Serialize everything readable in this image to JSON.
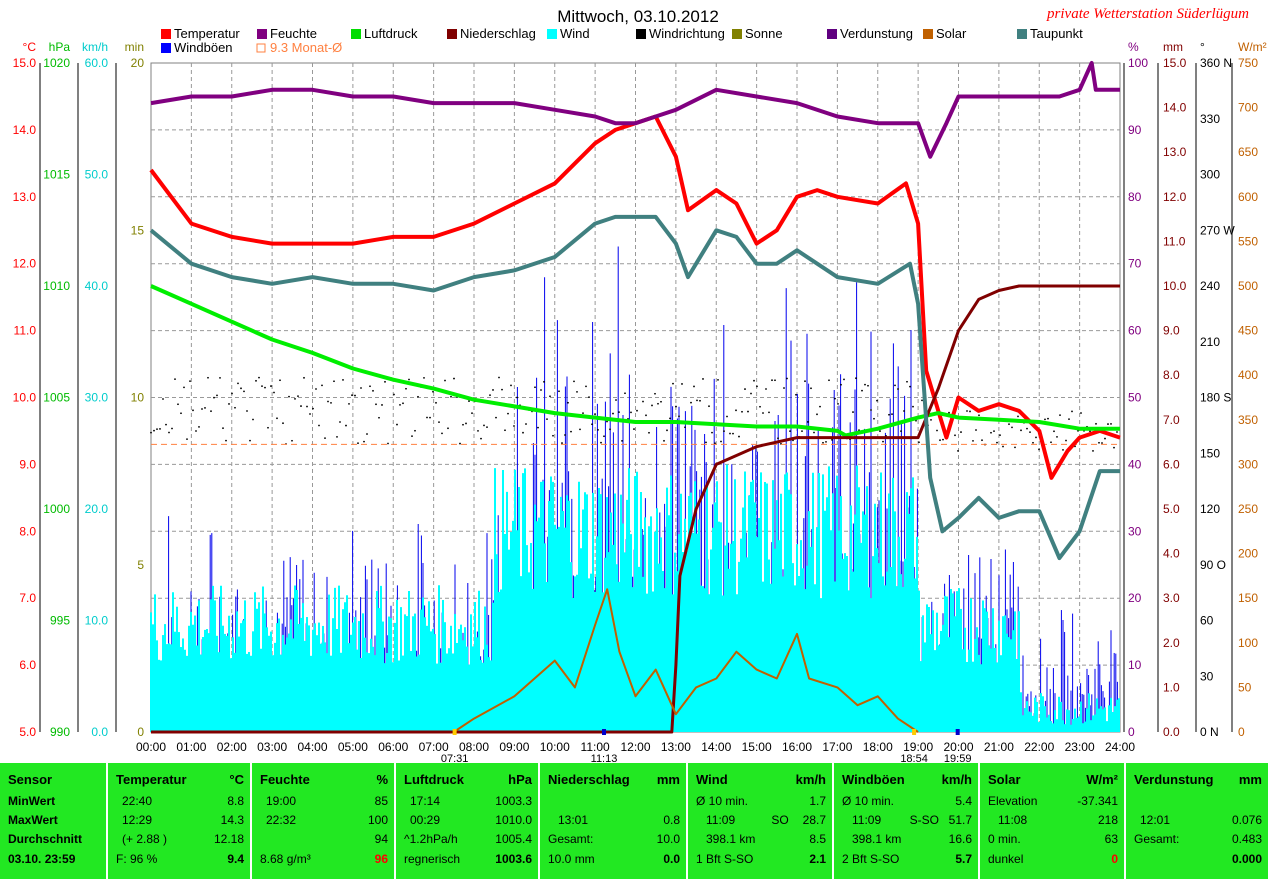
{
  "title": "Mittwoch, 03.10.2012",
  "brand": "private Wetterstation Süderlügum",
  "legend": [
    {
      "label": "Temperatur",
      "color": "#ff0000"
    },
    {
      "label": "Feuchte",
      "color": "#800080"
    },
    {
      "label": "Luftdruck",
      "color": "#00dd00"
    },
    {
      "label": "Niederschlag",
      "color": "#800000"
    },
    {
      "label": "Wind",
      "color": "#00ffff"
    },
    {
      "label": "Windrichtung",
      "color": "#000000"
    },
    {
      "label": "Sonne",
      "color": "#808000"
    },
    {
      "label": "Verdunstung",
      "color": "#600080"
    },
    {
      "label": "Solar",
      "color": "#c06000"
    },
    {
      "label": "Taupunkt",
      "color": "#408080"
    },
    {
      "label": "Windböen",
      "color": "#0000ff"
    },
    {
      "label": "9.3 Monat-Ø",
      "color": "#ff8040"
    }
  ],
  "chart_data": {
    "type": "line",
    "x_ticks": [
      "00:00",
      "01:00",
      "02:00",
      "03:00",
      "04:00",
      "05:00",
      "06:00",
      "07:00",
      "08:00",
      "09:00",
      "10:00",
      "11:00",
      "12:00",
      "13:00",
      "14:00",
      "15:00",
      "16:00",
      "17:00",
      "18:00",
      "19:00",
      "20:00",
      "21:00",
      "22:00",
      "23:00",
      "24:00"
    ],
    "x_markers": [
      "07:31",
      "11:13",
      "18:54",
      "19:59"
    ],
    "axes": {
      "temperature": {
        "unit": "°C",
        "range": [
          5.0,
          15.0
        ],
        "ticks": [
          "15.0",
          "14.0",
          "13.0",
          "12.0",
          "11.0",
          "10.0",
          "9.0",
          "8.0",
          "7.0",
          "6.0",
          "5.0"
        ]
      },
      "pressure": {
        "unit": "hPa",
        "range": [
          990,
          1020
        ],
        "ticks": [
          "1020",
          "1015",
          "1010",
          "1005",
          "1000",
          "995",
          "990"
        ]
      },
      "wind": {
        "unit": "km/h",
        "range": [
          0,
          60
        ],
        "ticks": [
          "60.0",
          "50.0",
          "40.0",
          "30.0",
          "20.0",
          "10.0",
          "0.0"
        ]
      },
      "sun": {
        "unit": "min",
        "range": [
          0,
          20
        ],
        "ticks": [
          "20",
          "15",
          "10",
          "5",
          "0"
        ]
      },
      "humidity": {
        "unit": "%",
        "range": [
          0,
          100
        ],
        "ticks": [
          "100",
          "90",
          "80",
          "70",
          "60",
          "50",
          "40",
          "30",
          "20",
          "10",
          "0"
        ]
      },
      "precip": {
        "unit": "mm",
        "range": [
          0,
          15
        ],
        "ticks": [
          "15.0",
          "14.0",
          "13.0",
          "12.0",
          "11.0",
          "10.0",
          "9.0",
          "8.0",
          "7.0",
          "6.0",
          "5.0",
          "4.0",
          "3.0",
          "2.0",
          "1.0",
          "0.0"
        ]
      },
      "direction": {
        "unit": "°",
        "ticks": [
          "360 N",
          "330",
          "300",
          "270 W",
          "240",
          "210",
          "180 S",
          "150",
          "120",
          "90 O",
          "60",
          "30",
          "0 N"
        ]
      },
      "solar": {
        "unit": "W/m²",
        "range": [
          0,
          750
        ],
        "ticks": [
          "750",
          "700",
          "650",
          "600",
          "550",
          "500",
          "450",
          "400",
          "350",
          "300",
          "250",
          "200",
          "150",
          "100",
          "50",
          "0"
        ]
      }
    },
    "series": [
      {
        "name": "Temperatur",
        "axis": "temperature",
        "points": [
          [
            0,
            13.4
          ],
          [
            0.5,
            13.0
          ],
          [
            1,
            12.6
          ],
          [
            2,
            12.4
          ],
          [
            3,
            12.3
          ],
          [
            4,
            12.3
          ],
          [
            5,
            12.3
          ],
          [
            6,
            12.4
          ],
          [
            7,
            12.4
          ],
          [
            8,
            12.6
          ],
          [
            9,
            12.9
          ],
          [
            10,
            13.2
          ],
          [
            11,
            13.8
          ],
          [
            11.5,
            14.0
          ],
          [
            12,
            14.1
          ],
          [
            12.5,
            14.2
          ],
          [
            13,
            13.6
          ],
          [
            13.3,
            12.8
          ],
          [
            14,
            13.1
          ],
          [
            14.5,
            12.9
          ],
          [
            15,
            12.3
          ],
          [
            15.5,
            12.5
          ],
          [
            16,
            13.0
          ],
          [
            16.5,
            13.1
          ],
          [
            17,
            13.0
          ],
          [
            18,
            12.9
          ],
          [
            18.7,
            13.2
          ],
          [
            19,
            12.6
          ],
          [
            19.2,
            10.4
          ],
          [
            19.5,
            9.8
          ],
          [
            19.7,
            9.4
          ],
          [
            20,
            10.0
          ],
          [
            20.5,
            9.8
          ],
          [
            21,
            9.9
          ],
          [
            21.5,
            9.8
          ],
          [
            22,
            9.5
          ],
          [
            22.3,
            8.8
          ],
          [
            22.7,
            9.2
          ],
          [
            23,
            9.4
          ],
          [
            23.5,
            9.5
          ],
          [
            24,
            9.4
          ]
        ]
      },
      {
        "name": "Feuchte",
        "axis": "humidity",
        "points": [
          [
            0,
            94
          ],
          [
            1,
            95
          ],
          [
            2,
            95
          ],
          [
            3,
            96
          ],
          [
            4,
            96
          ],
          [
            5,
            95
          ],
          [
            6,
            95
          ],
          [
            7,
            94
          ],
          [
            8,
            94
          ],
          [
            9,
            94
          ],
          [
            10,
            93
          ],
          [
            11,
            92
          ],
          [
            11.5,
            91
          ],
          [
            12,
            91
          ],
          [
            12.5,
            92
          ],
          [
            13,
            93
          ],
          [
            14,
            96
          ],
          [
            15,
            95
          ],
          [
            16,
            94
          ],
          [
            17,
            92
          ],
          [
            18,
            91
          ],
          [
            19,
            91
          ],
          [
            19.3,
            86
          ],
          [
            19.7,
            91
          ],
          [
            20,
            95
          ],
          [
            21,
            95
          ],
          [
            22,
            95
          ],
          [
            22.5,
            95
          ],
          [
            23,
            96
          ],
          [
            23.3,
            100
          ],
          [
            23.4,
            96
          ],
          [
            24,
            96
          ]
        ]
      },
      {
        "name": "Luftdruck",
        "axis": "pressure",
        "points": [
          [
            0,
            1010.0
          ],
          [
            1,
            1009.2
          ],
          [
            2,
            1008.4
          ],
          [
            3,
            1007.6
          ],
          [
            4,
            1007.0
          ],
          [
            5,
            1006.3
          ],
          [
            6,
            1005.8
          ],
          [
            7,
            1005.4
          ],
          [
            8,
            1004.9
          ],
          [
            9,
            1004.6
          ],
          [
            10,
            1004.3
          ],
          [
            11,
            1004.1
          ],
          [
            12,
            1003.9
          ],
          [
            13,
            1003.9
          ],
          [
            14,
            1003.8
          ],
          [
            15,
            1003.7
          ],
          [
            16,
            1003.7
          ],
          [
            17,
            1003.5
          ],
          [
            17.2,
            1003.3
          ],
          [
            18,
            1003.6
          ],
          [
            19,
            1004.1
          ],
          [
            19.5,
            1004.3
          ],
          [
            20,
            1004.1
          ],
          [
            21,
            1004.0
          ],
          [
            22,
            1003.9
          ],
          [
            23,
            1003.6
          ],
          [
            24,
            1003.6
          ]
        ]
      },
      {
        "name": "Niederschlag",
        "axis": "precip",
        "points": [
          [
            0,
            0
          ],
          [
            12.9,
            0
          ],
          [
            13.0,
            1.5
          ],
          [
            13.1,
            3.5
          ],
          [
            13.5,
            5.0
          ],
          [
            14,
            6.0
          ],
          [
            15,
            6.4
          ],
          [
            16,
            6.6
          ],
          [
            17,
            6.6
          ],
          [
            18,
            6.6
          ],
          [
            19,
            6.6
          ],
          [
            19.5,
            7.7
          ],
          [
            20,
            9.0
          ],
          [
            20.5,
            9.7
          ],
          [
            21,
            9.9
          ],
          [
            21.5,
            10.0
          ],
          [
            24,
            10.0
          ]
        ]
      },
      {
        "name": "Taupunkt",
        "axis": "temperature",
        "points": [
          [
            0,
            12.5
          ],
          [
            1,
            12.0
          ],
          [
            2,
            11.8
          ],
          [
            3,
            11.7
          ],
          [
            4,
            11.8
          ],
          [
            5,
            11.7
          ],
          [
            6,
            11.7
          ],
          [
            7,
            11.6
          ],
          [
            8,
            11.8
          ],
          [
            9,
            11.9
          ],
          [
            10,
            12.1
          ],
          [
            11,
            12.6
          ],
          [
            11.5,
            12.7
          ],
          [
            12,
            12.7
          ],
          [
            12.5,
            12.7
          ],
          [
            13,
            12.3
          ],
          [
            13.3,
            11.8
          ],
          [
            14,
            12.5
          ],
          [
            14.5,
            12.4
          ],
          [
            15,
            12.0
          ],
          [
            15.5,
            12.0
          ],
          [
            16,
            12.2
          ],
          [
            16.5,
            12.0
          ],
          [
            17,
            11.8
          ],
          [
            18,
            11.7
          ],
          [
            18.8,
            12.0
          ],
          [
            19,
            11.4
          ],
          [
            19.3,
            8.8
          ],
          [
            19.6,
            8.0
          ],
          [
            20,
            8.2
          ],
          [
            20.5,
            8.5
          ],
          [
            21,
            8.2
          ],
          [
            21.5,
            8.3
          ],
          [
            22,
            8.3
          ],
          [
            22.5,
            7.6
          ],
          [
            23,
            8.0
          ],
          [
            23.5,
            8.9
          ],
          [
            24,
            8.9
          ]
        ]
      },
      {
        "name": "Solar",
        "axis": "solar",
        "points": [
          [
            7.5,
            0
          ],
          [
            8,
            15
          ],
          [
            9,
            40
          ],
          [
            10,
            80
          ],
          [
            10.5,
            50
          ],
          [
            11,
            120
          ],
          [
            11.3,
            160
          ],
          [
            11.6,
            90
          ],
          [
            12,
            40
          ],
          [
            12.5,
            70
          ],
          [
            13,
            20
          ],
          [
            13.5,
            50
          ],
          [
            14,
            60
          ],
          [
            14.5,
            90
          ],
          [
            15,
            70
          ],
          [
            15.5,
            60
          ],
          [
            16,
            110
          ],
          [
            16.3,
            60
          ],
          [
            17,
            50
          ],
          [
            17.5,
            30
          ],
          [
            18,
            40
          ],
          [
            18.5,
            15
          ],
          [
            19,
            0
          ]
        ]
      }
    ],
    "reference_line": {
      "name": "9.3 Monat-Ø",
      "axis": "temperature",
      "value": 9.3
    }
  },
  "stats": {
    "sensor": {
      "header": "Sensor",
      "rows": [
        "MinWert",
        "MaxWert",
        "Durchschnitt"
      ],
      "footer": "03.10. 23:59"
    },
    "temperatur": {
      "header": "Temperatur",
      "unit": "°C",
      "min_time": "22:40",
      "min_val": "8.8",
      "max_time": "12:29",
      "max_val": "14.3",
      "avg_note": "(+ 2.88 )",
      "avg_val": "12.18",
      "foot_left": "F: 96 %",
      "foot_val": "9.4"
    },
    "feuchte": {
      "header": "Feuchte",
      "unit": "%",
      "min_time": "19:00",
      "min_val": "85",
      "max_time": "22:32",
      "max_val": "100",
      "avg_val": "94",
      "foot_left": "8.68 g/m³",
      "foot_val": "96"
    },
    "luftdruck": {
      "header": "Luftdruck",
      "unit": "hPa",
      "min_time": "17:14",
      "min_val": "1003.3",
      "max_time": "00:29",
      "max_val": "1010.0",
      "avg_note": "^1.2hPa/h",
      "avg_val": "1005.4",
      "foot_left": "regnerisch",
      "foot_val": "1003.6"
    },
    "niederschlag": {
      "header": "Niederschlag",
      "unit": "mm",
      "max_time": "13:01",
      "max_val": "0.8",
      "avg_label": "Gesamt:",
      "avg_val": "10.0",
      "foot_left": "10.0 mm",
      "foot_val": "0.0"
    },
    "wind": {
      "header": "Wind",
      "unit": "km/h",
      "min_label": "Ø 10 min.",
      "min_val": "1.7",
      "max_time": "11:09",
      "max_dir": "SO",
      "max_val": "28.7",
      "avg_label": "398.1 km",
      "avg_val": "8.5",
      "foot_left": "1 Bft S-SO",
      "foot_val": "2.1"
    },
    "windboeen": {
      "header": "Windböen",
      "unit": "km/h",
      "min_label": "Ø 10 min.",
      "min_val": "5.4",
      "max_time": "11:09",
      "max_dir": "S-SO",
      "max_val": "51.7",
      "avg_label": "398.1 km",
      "avg_val": "16.6",
      "foot_left": "2 Bft S-SO",
      "foot_val": "5.7"
    },
    "solar": {
      "header": "Solar",
      "unit": "W/m²",
      "min_label": "Elevation",
      "min_val": "-37.341",
      "max_time": "11:08",
      "max_val": "218",
      "avg_label": "0 min.",
      "avg_val": "63",
      "foot_left": "dunkel",
      "foot_val": "0"
    },
    "verdunstung": {
      "header": "Verdunstung",
      "unit": "mm",
      "max_time": "12:01",
      "max_val": "0.076",
      "avg_label": "Gesamt:",
      "avg_val": "0.483",
      "foot_val": "0.000"
    }
  }
}
